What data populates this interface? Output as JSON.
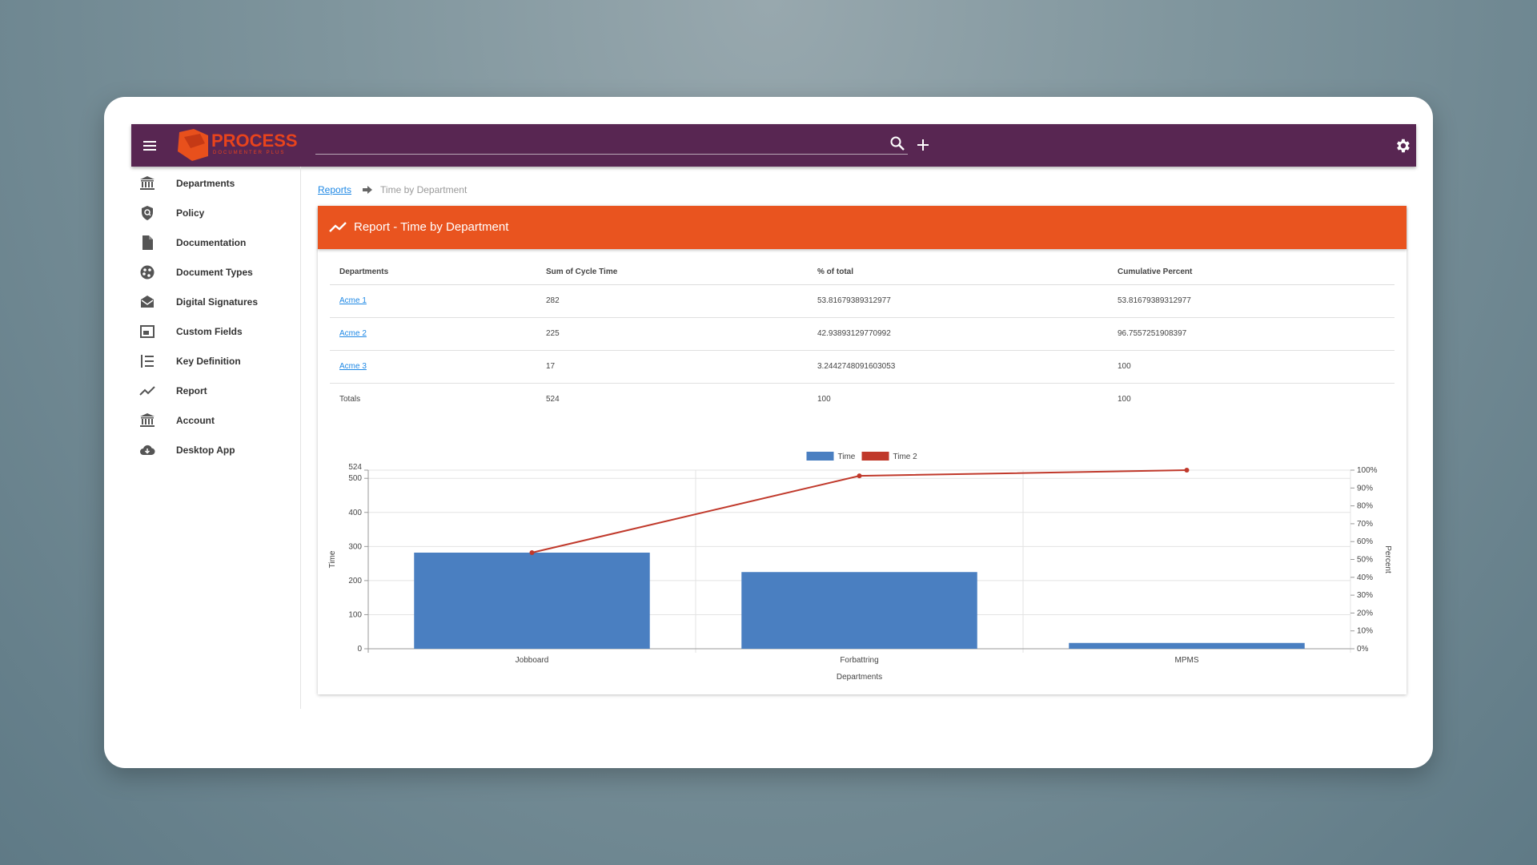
{
  "app": {
    "logo_text": "PROCESS",
    "logo_sub": "DOCUMENTER PLUS"
  },
  "icons": {
    "menu": "menu-icon",
    "search": "search-icon",
    "add": "plus-icon",
    "settings": "gear-icon"
  },
  "sidebar": {
    "items": [
      {
        "label": "Departments",
        "icon": "bank-icon"
      },
      {
        "label": "Policy",
        "icon": "shield-icon"
      },
      {
        "label": "Documentation",
        "icon": "document-icon"
      },
      {
        "label": "Document Types",
        "icon": "palette-icon"
      },
      {
        "label": "Digital Signatures",
        "icon": "envelope-icon"
      },
      {
        "label": "Custom Fields",
        "icon": "field-icon"
      },
      {
        "label": "Key Definition",
        "icon": "list-icon"
      },
      {
        "label": "Report",
        "icon": "trend-icon"
      },
      {
        "label": "Account",
        "icon": "bank-icon"
      },
      {
        "label": "Desktop App",
        "icon": "cloud-download-icon"
      }
    ]
  },
  "breadcrumb": {
    "parent": "Reports",
    "current": "Time by Department"
  },
  "report": {
    "title": "Report - Time by Department",
    "columns": [
      "Departments",
      "Sum of Cycle Time",
      "% of total",
      "Cumulative Percent"
    ],
    "rows": [
      {
        "department": "Acme 1",
        "sum": "282",
        "pct": "53.81679389312977",
        "cum": "53.81679389312977"
      },
      {
        "department": "Acme 2",
        "sum": "225",
        "pct": "42.93893129770992",
        "cum": "96.7557251908397"
      },
      {
        "department": "Acme 3",
        "sum": "17",
        "pct": "3.2442748091603053",
        "cum": "100"
      }
    ],
    "totals": {
      "label": "Totals",
      "sum": "524",
      "pct": "100",
      "cum": "100"
    }
  },
  "chart_data": {
    "type": "bar",
    "categories": [
      "Jobboard",
      "Forbattring",
      "MPMS"
    ],
    "series": [
      {
        "name": "Time",
        "type": "bar",
        "axis": "left",
        "values": [
          282,
          225,
          17
        ],
        "color": "#4a7fc1"
      },
      {
        "name": "Time 2",
        "type": "line",
        "axis": "right",
        "values": [
          53.8,
          96.8,
          100
        ],
        "color": "#c0392b"
      }
    ],
    "xlabel": "Departments",
    "ylabel": "Time",
    "y2label": "Percent",
    "ylim": [
      0,
      524
    ],
    "yticks": [
      "0",
      "100",
      "200",
      "300",
      "400",
      "500",
      "524"
    ],
    "y2lim": [
      0,
      100
    ],
    "y2ticks": [
      "0%",
      "10%",
      "20%",
      "30%",
      "40%",
      "50%",
      "60%",
      "70%",
      "80%",
      "90%",
      "100%"
    ],
    "legend": "top-center",
    "grid": true
  }
}
